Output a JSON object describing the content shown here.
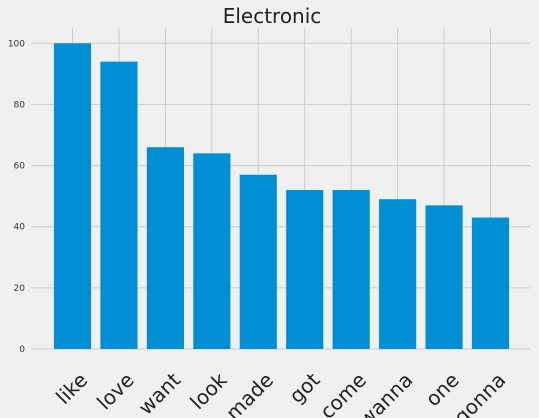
{
  "chart_data": {
    "type": "bar",
    "title": "Electronic",
    "xlabel": "",
    "ylabel": "",
    "categories": [
      "like",
      "love",
      "want",
      "look",
      "made",
      "got",
      "come",
      "wanna",
      "one",
      "gonna"
    ],
    "values": [
      100,
      94,
      66,
      64,
      57,
      52,
      52,
      49,
      47,
      43
    ],
    "ylim": [
      0,
      105
    ],
    "yticks": [
      0,
      20,
      40,
      60,
      80,
      100
    ],
    "grid": true,
    "legend": "none",
    "bar_color": "#008fd5",
    "background_color": "#f0f0f0",
    "grid_color": "#cbcbcb"
  }
}
